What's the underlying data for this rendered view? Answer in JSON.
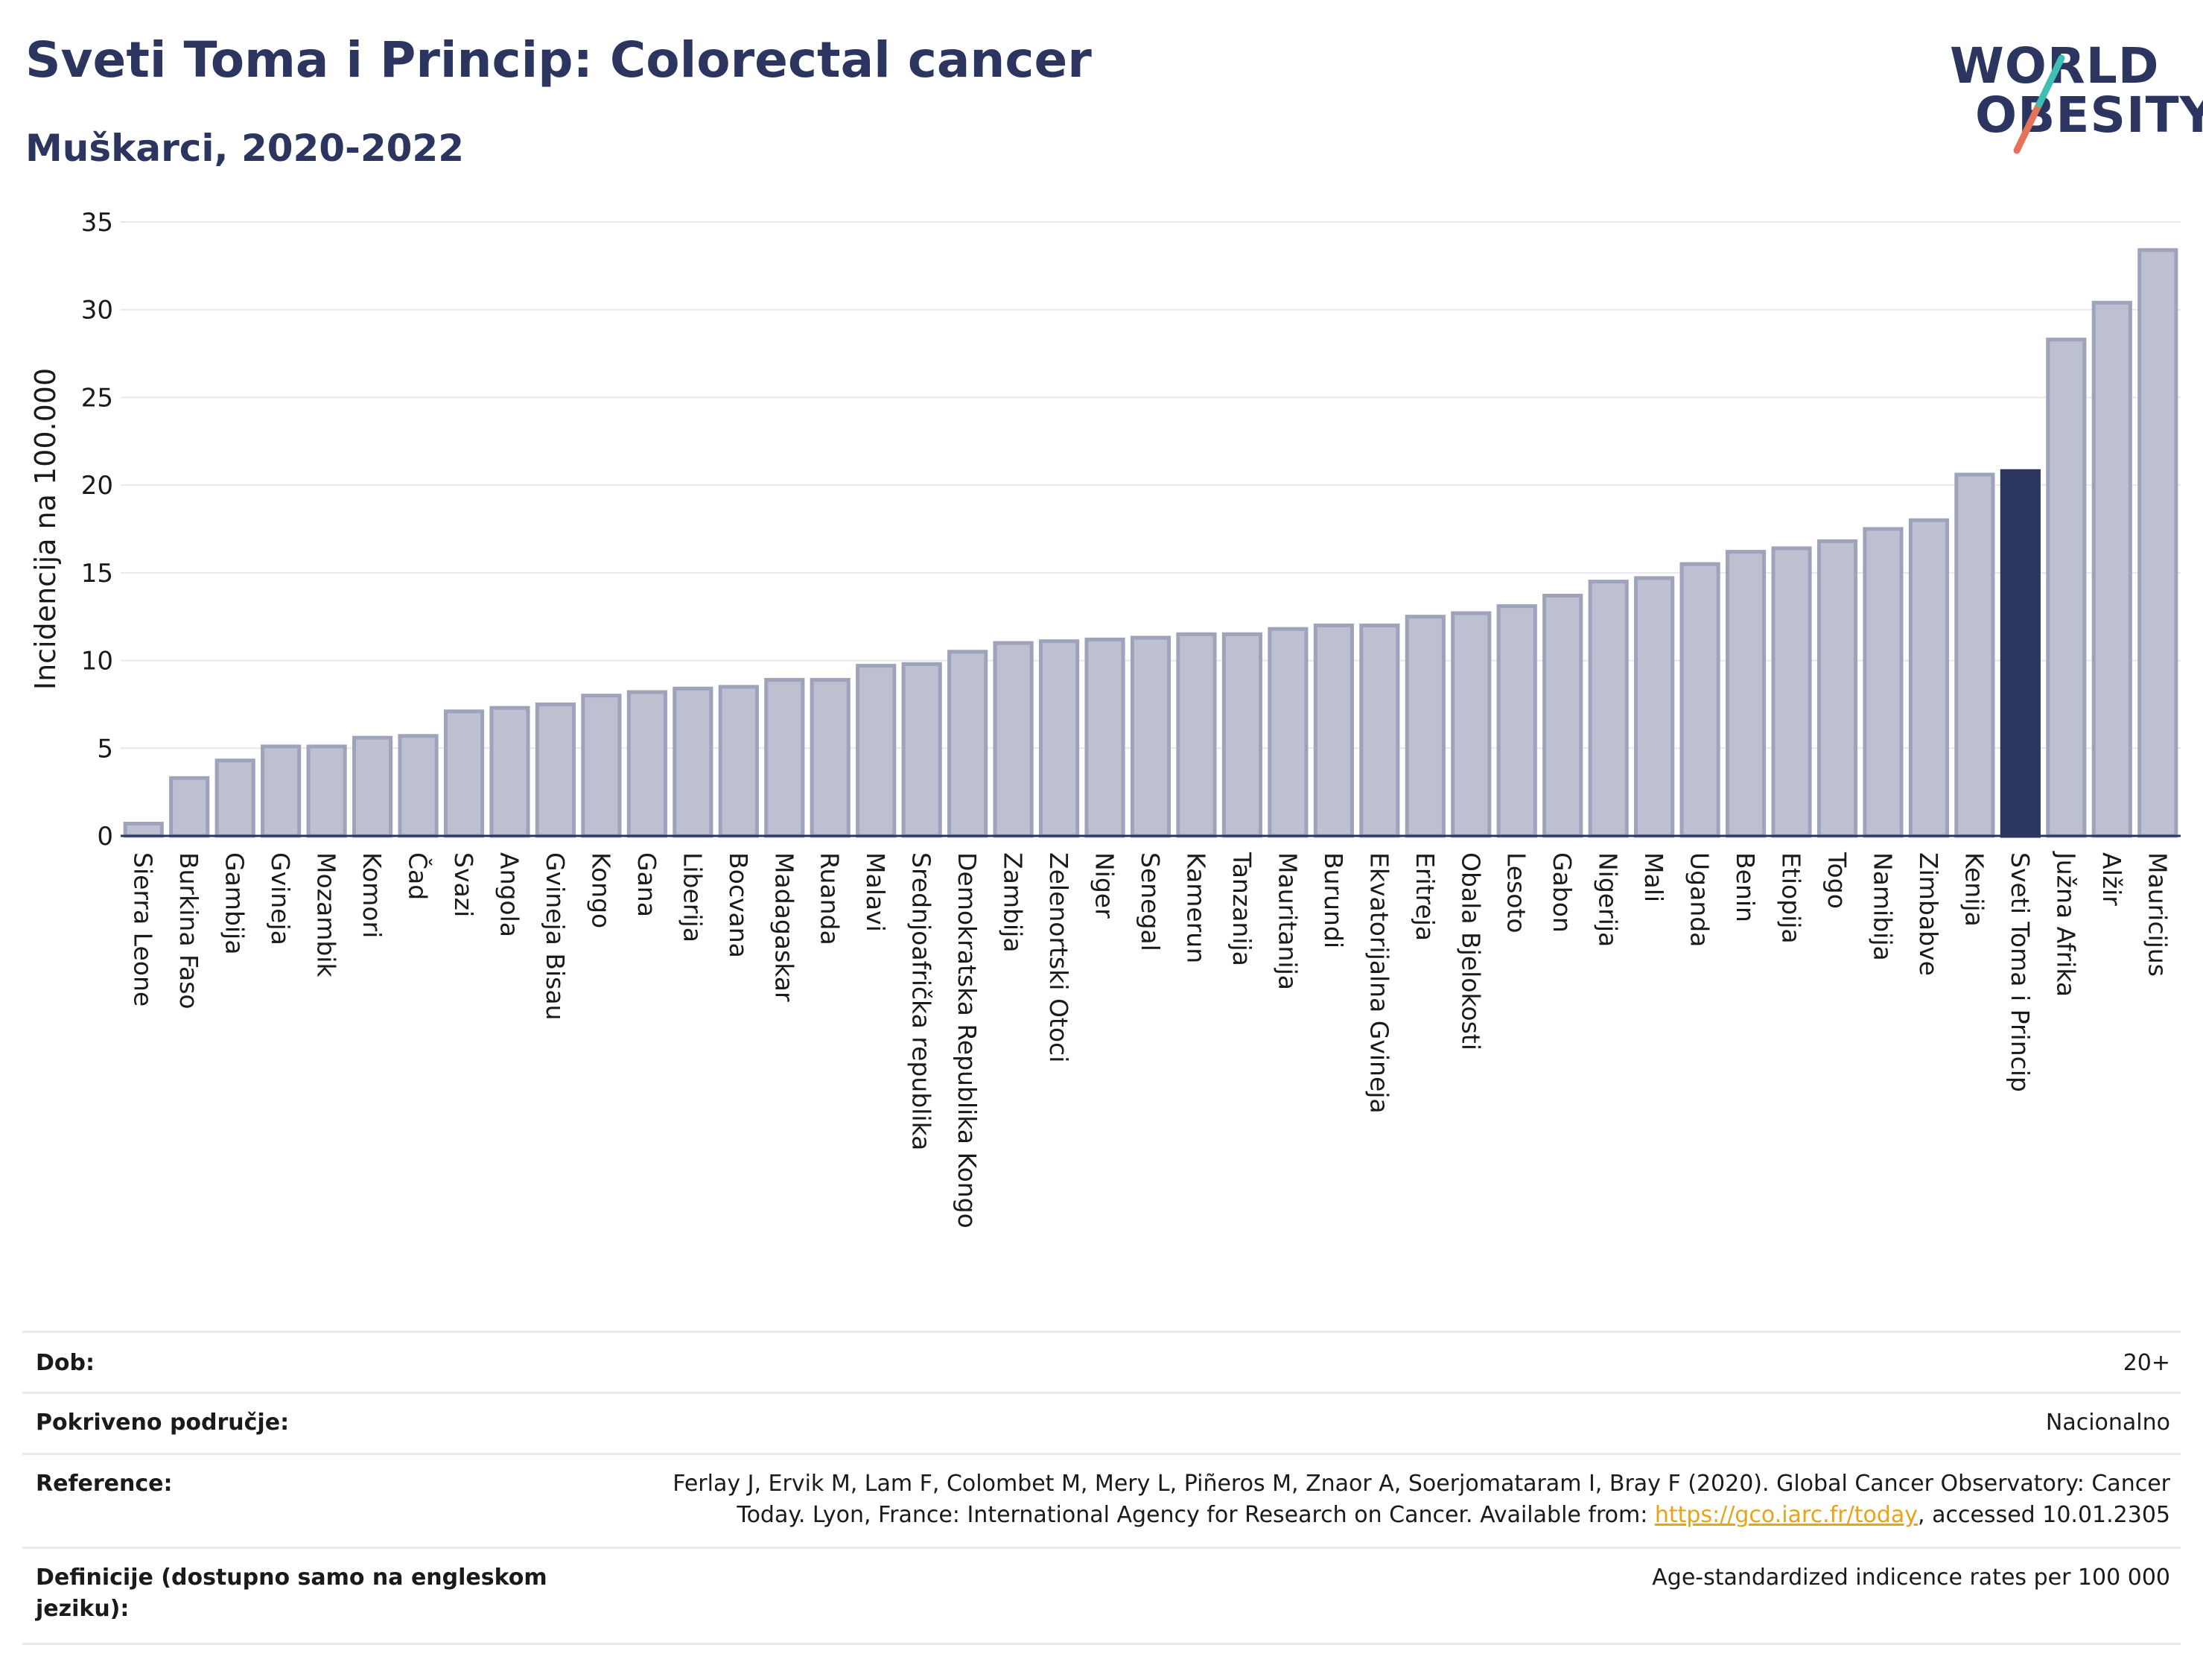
{
  "header": {
    "title": "Sveti Toma i Princip: Colorectal cancer",
    "subtitle": "Muškarci, 2020-2022"
  },
  "logo": {
    "line1": "WORLD",
    "line2": "OBESITY",
    "accent_colors": [
      "#3fbfb4",
      "#e4735a"
    ]
  },
  "chart_data": {
    "type": "bar",
    "ylabel": "Incidencija na 100.000",
    "ylim": [
      0,
      35
    ],
    "yticks": [
      0,
      5,
      10,
      15,
      20,
      25,
      30,
      35
    ],
    "grid": true,
    "highlight": "Sveti Toma i Princip",
    "colors": {
      "bar": "#bcc0d0",
      "bar_border": "#9ea3bb",
      "highlight": "#2b3560"
    },
    "categories": [
      "Sierra Leone",
      "Burkina Faso",
      "Gambija",
      "Gvineja",
      "Mozambik",
      "Komori",
      "Čad",
      "Svazi",
      "Angola",
      "Gvineja Bisau",
      "Kongo",
      "Gana",
      "Liberija",
      "Bocvana",
      "Madagaskar",
      "Ruanda",
      "Malavi",
      "Srednjoafrička republika",
      "Demokratska Republika Kongo",
      "Zambija",
      "Zelenortski Otoci",
      "Niger",
      "Senegal",
      "Kamerun",
      "Tanzanija",
      "Mauritanija",
      "Burundi",
      "Ekvatorijalna Gvineja",
      "Eritreja",
      "Obala Bjelokosti",
      "Lesoto",
      "Gabon",
      "Nigerija",
      "Mali",
      "Uganda",
      "Benin",
      "Etiopija",
      "Togo",
      "Namibija",
      "Zimbabve",
      "Kenija",
      "Sveti Toma i Princip",
      "Južna Afrika",
      "Alžir",
      "Mauricijus"
    ],
    "values": [
      0.7,
      3.3,
      4.3,
      5.1,
      5.1,
      5.6,
      5.7,
      7.1,
      7.3,
      7.5,
      8.0,
      8.2,
      8.4,
      8.5,
      8.9,
      8.9,
      9.7,
      9.8,
      10.5,
      11.0,
      11.1,
      11.2,
      11.3,
      11.5,
      11.5,
      11.8,
      12.0,
      12.0,
      12.5,
      12.7,
      13.1,
      13.7,
      14.5,
      14.7,
      15.5,
      16.2,
      16.4,
      16.8,
      17.5,
      18.0,
      20.6,
      20.8,
      28.3,
      30.4,
      33.4
    ]
  },
  "meta": {
    "age_label": "Dob:",
    "age_value": "20+",
    "coverage_label": "Pokriveno područje:",
    "coverage_value": "Nacionalno",
    "reference_label": "Reference:",
    "reference_line1": "Ferlay J, Ervik M, Lam F, Colombet M, Mery L, Piñeros M, Znaor A, Soerjomataram I, Bray F (2020). Global Cancer Observatory: Cancer",
    "reference_line2_pre": "Today. Lyon, France: International Agency for Research on Cancer. Available from: ",
    "reference_link": "https://gco.iarc.fr/today",
    "reference_line2_post": ", accessed 10.01.2305",
    "definition_label": "Definicije (dostupno samo na engleskom jeziku):",
    "definition_value": "Age-standardized indicence rates per 100 000"
  }
}
